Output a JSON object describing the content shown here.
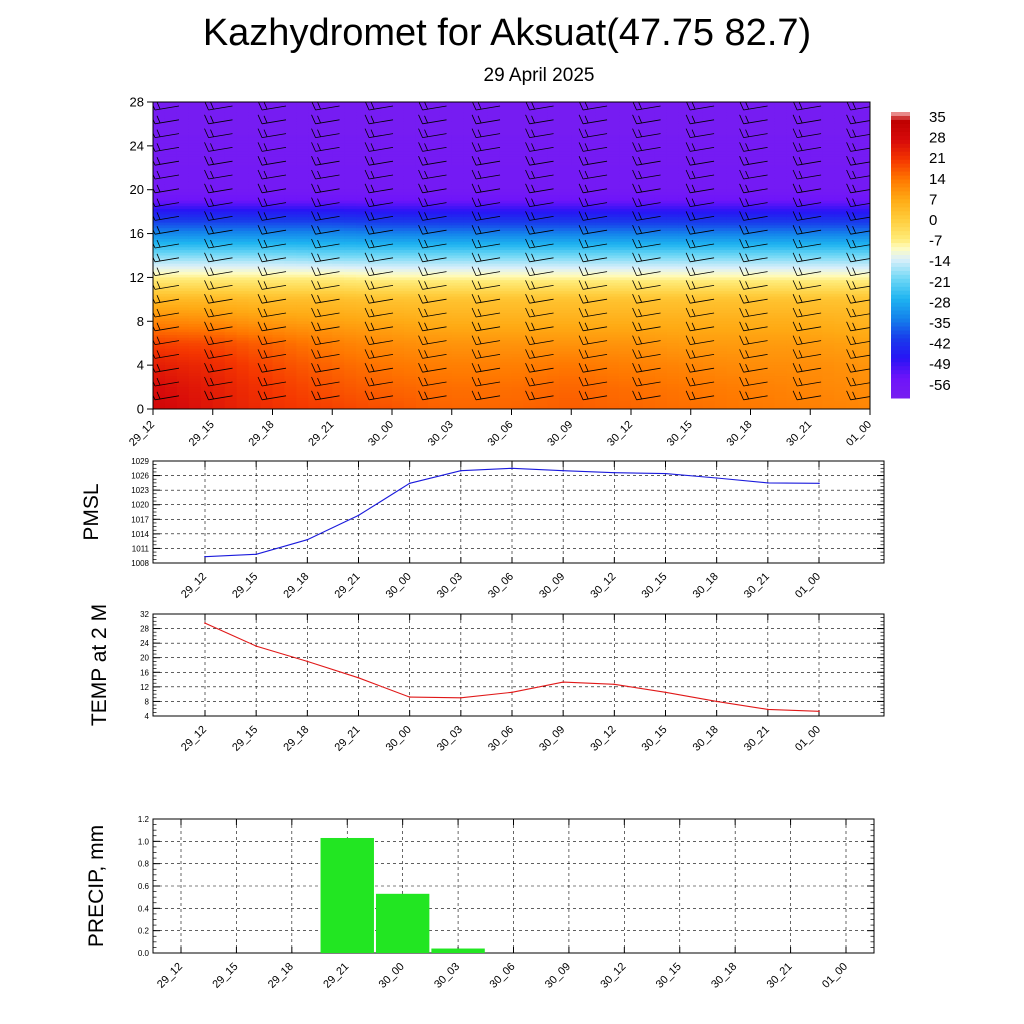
{
  "header": {
    "title": "Kazhydromet for Aksuat(47.75 82.7)",
    "subtitle": "29 April 2025"
  },
  "colors": {
    "pmsl_line": "#1a1adc",
    "temp_line": "#e01818",
    "precip_bar": "#22e622",
    "barb": "#000000"
  },
  "chart_data": [
    {
      "type": "heatmap",
      "title": "",
      "x": [
        "29_12",
        "29_15",
        "29_18",
        "29_21",
        "30_00",
        "30_03",
        "30_06",
        "30_09",
        "30_12",
        "30_15",
        "30_18",
        "30_21",
        "01_00"
      ],
      "y_ticks": [
        0,
        4,
        8,
        12,
        16,
        20,
        24,
        28
      ],
      "ylim": [
        0,
        28
      ],
      "colorbar": {
        "labels": [
          "35",
          "28",
          "21",
          "14",
          "7",
          "0",
          "-7",
          "-14",
          "-21",
          "-28",
          "-35",
          "-42",
          "-49",
          "-56"
        ],
        "range": [
          -63,
          38
        ]
      },
      "temperature_profile": [
        {
          "level": 0,
          "values": [
            30,
            26,
            22,
            20,
            18,
            16,
            16,
            17,
            16,
            15,
            14,
            13,
            12
          ]
        },
        {
          "level": 2,
          "values": [
            28,
            25,
            21,
            18,
            16,
            15,
            15,
            16,
            15,
            14,
            13,
            12,
            11
          ]
        },
        {
          "level": 4,
          "values": [
            25,
            23,
            19,
            16,
            14,
            13,
            13,
            14,
            13,
            12,
            11,
            11,
            10
          ]
        },
        {
          "level": 6,
          "values": [
            20,
            19,
            16,
            13,
            11,
            10,
            10,
            10,
            10,
            9,
            9,
            9,
            8
          ]
        },
        {
          "level": 8,
          "values": [
            12,
            11,
            9,
            8,
            7,
            6,
            6,
            6,
            6,
            6,
            6,
            6,
            5
          ]
        },
        {
          "level": 10,
          "values": [
            4,
            4,
            3,
            3,
            2,
            2,
            2,
            2,
            2,
            2,
            2,
            2,
            2
          ]
        },
        {
          "level": 12,
          "values": [
            -8,
            -8,
            -8,
            -8,
            -9,
            -9,
            -9,
            -9,
            -9,
            -9,
            -9,
            -9,
            -9
          ]
        },
        {
          "level": 14,
          "values": [
            -20,
            -20,
            -20,
            -21,
            -21,
            -21,
            -21,
            -21,
            -21,
            -21,
            -21,
            -21,
            -21
          ]
        },
        {
          "level": 16,
          "values": [
            -34,
            -34,
            -34,
            -34,
            -35,
            -35,
            -35,
            -35,
            -35,
            -35,
            -35,
            -35,
            -35
          ]
        },
        {
          "level": 18,
          "values": [
            -48,
            -48,
            -48,
            -48,
            -49,
            -49,
            -49,
            -49,
            -49,
            -49,
            -49,
            -49,
            -49
          ]
        },
        {
          "level": 19,
          "values": [
            -56,
            -56,
            -56,
            -56,
            -56,
            -56,
            -56,
            -56,
            -56,
            -56,
            -56,
            -56,
            -56
          ]
        },
        {
          "level": 20,
          "values": [
            -60,
            -60,
            -60,
            -60,
            -60,
            -60,
            -60,
            -60,
            -60,
            -60,
            -60,
            -60,
            -60
          ]
        },
        {
          "level": 28,
          "values": [
            -62,
            -62,
            -62,
            -62,
            -62,
            -62,
            -62,
            -62,
            -62,
            -62,
            -62,
            -62,
            -62
          ]
        }
      ]
    },
    {
      "type": "line",
      "ylabel": "PMSL",
      "x": [
        "29_12",
        "29_15",
        "29_18",
        "29_21",
        "30_00",
        "30_03",
        "30_06",
        "30_09",
        "30_12",
        "30_15",
        "30_18",
        "30_21",
        "01_00"
      ],
      "values": [
        1009.3,
        1009.8,
        1012.8,
        1017.8,
        1024.4,
        1027.0,
        1027.5,
        1027.0,
        1026.6,
        1026.4,
        1025.5,
        1024.5,
        1024.4
      ],
      "y_ticks": [
        1008,
        1011,
        1014,
        1017,
        1020,
        1023,
        1026,
        1029
      ],
      "ylim": [
        1008,
        1029
      ]
    },
    {
      "type": "line",
      "ylabel": "TEMP at 2 M",
      "x": [
        "29_12",
        "29_15",
        "29_18",
        "29_21",
        "30_00",
        "30_03",
        "30_06",
        "30_09",
        "30_12",
        "30_15",
        "30_18",
        "30_21",
        "01_00"
      ],
      "values": [
        29.5,
        23.2,
        19.0,
        14.5,
        9.2,
        9.0,
        10.5,
        13.3,
        12.7,
        10.5,
        8.0,
        5.8,
        5.3
      ],
      "y_ticks": [
        4,
        8,
        12,
        16,
        20,
        24,
        28,
        32
      ],
      "ylim": [
        4,
        32
      ]
    },
    {
      "type": "bar",
      "ylabel": "PRECIP, mm",
      "x": [
        "29_12",
        "29_15",
        "29_18",
        "29_21",
        "30_00",
        "30_03",
        "30_06",
        "30_09",
        "30_12",
        "30_15",
        "30_18",
        "30_21",
        "01_00"
      ],
      "values": [
        0,
        0,
        0,
        1.03,
        0.53,
        0.04,
        0,
        0,
        0,
        0,
        0,
        0,
        0
      ],
      "y_ticks": [
        "0.0",
        "0.2",
        "0.4",
        "0.6",
        "0.8",
        "1.0",
        "1.2"
      ],
      "ylim": [
        0,
        1.2
      ]
    }
  ]
}
